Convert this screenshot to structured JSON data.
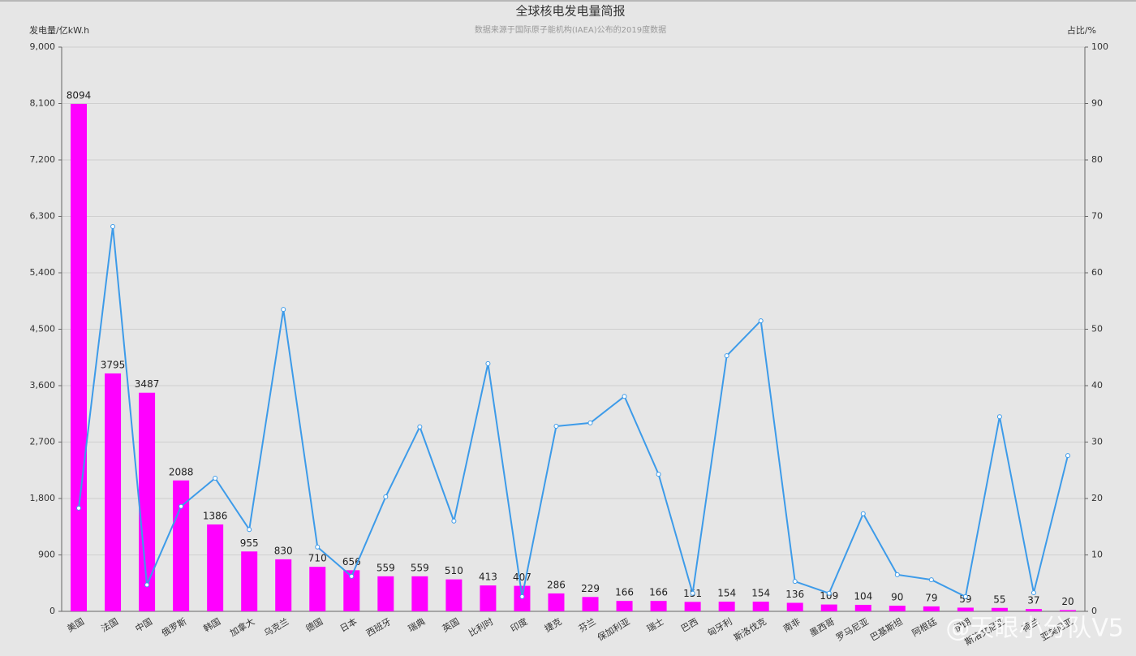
{
  "chart_data": {
    "type": "bar-line",
    "title": "全球核电发电量简报",
    "subtitle": "数据来源于国际原子能机构(IAEA)公布的2019度数据",
    "y_label": "发电量/亿kW.h",
    "y2_label": "占比/%",
    "watermark": "@天眼小分队V5",
    "categories": [
      "美国",
      "法国",
      "中国",
      "俄罗斯",
      "韩国",
      "加拿大",
      "乌克兰",
      "德国",
      "日本",
      "西班牙",
      "瑞典",
      "英国",
      "比利时",
      "印度",
      "捷克",
      "芬兰",
      "保加利亚",
      "瑞士",
      "巴西",
      "匈牙利",
      "斯洛伐克",
      "南非",
      "墨西哥",
      "罗马尼亚",
      "巴基斯坦",
      "阿根廷",
      "伊朗",
      "斯洛文尼亚",
      "荷兰",
      "亚美尼亚"
    ],
    "series": [
      {
        "type": "bar",
        "color": "#ff00ff",
        "show_values": true,
        "values": [
          8094,
          3795,
          3487,
          2088,
          1386,
          955,
          830,
          710,
          656,
          559,
          559,
          510,
          413,
          407,
          286,
          229,
          166,
          166,
          151,
          154,
          154,
          136,
          109,
          104,
          90,
          79,
          59,
          55,
          37,
          20
        ]
      },
      {
        "type": "line",
        "axis": "y2",
        "color": "#3d9be9",
        "values": [
          18.3,
          68.2,
          4.7,
          18.6,
          23.6,
          14.5,
          53.5,
          11.4,
          6.2,
          20.3,
          32.7,
          16.0,
          43.9,
          2.6,
          32.8,
          33.4,
          38.1,
          24.3,
          3.2,
          45.3,
          51.5,
          5.3,
          3.2,
          17.3,
          6.5,
          5.6,
          2.6,
          34.5,
          3.3,
          27.6
        ]
      }
    ],
    "ylim": [
      0,
      9000
    ],
    "yticks": [
      0,
      900,
      {
        "value": 1800,
        "label": "1,800"
      },
      {
        "value": 2700,
        "label": "2,700"
      },
      {
        "value": 3600,
        "label": "3,600"
      },
      {
        "value": 4500,
        "label": "4,500"
      },
      {
        "value": 5400,
        "label": "5,400"
      },
      {
        "value": 6300,
        "label": "6,300"
      },
      {
        "value": 7200,
        "label": "7,200"
      },
      {
        "value": 8100,
        "label": "8,100"
      },
      {
        "value": 9000,
        "label": "9,000"
      }
    ],
    "y2lim": [
      0,
      100
    ],
    "y2ticks": [
      0,
      10,
      20,
      30,
      40,
      50,
      60,
      70,
      80,
      90,
      100
    ],
    "grid": true
  }
}
